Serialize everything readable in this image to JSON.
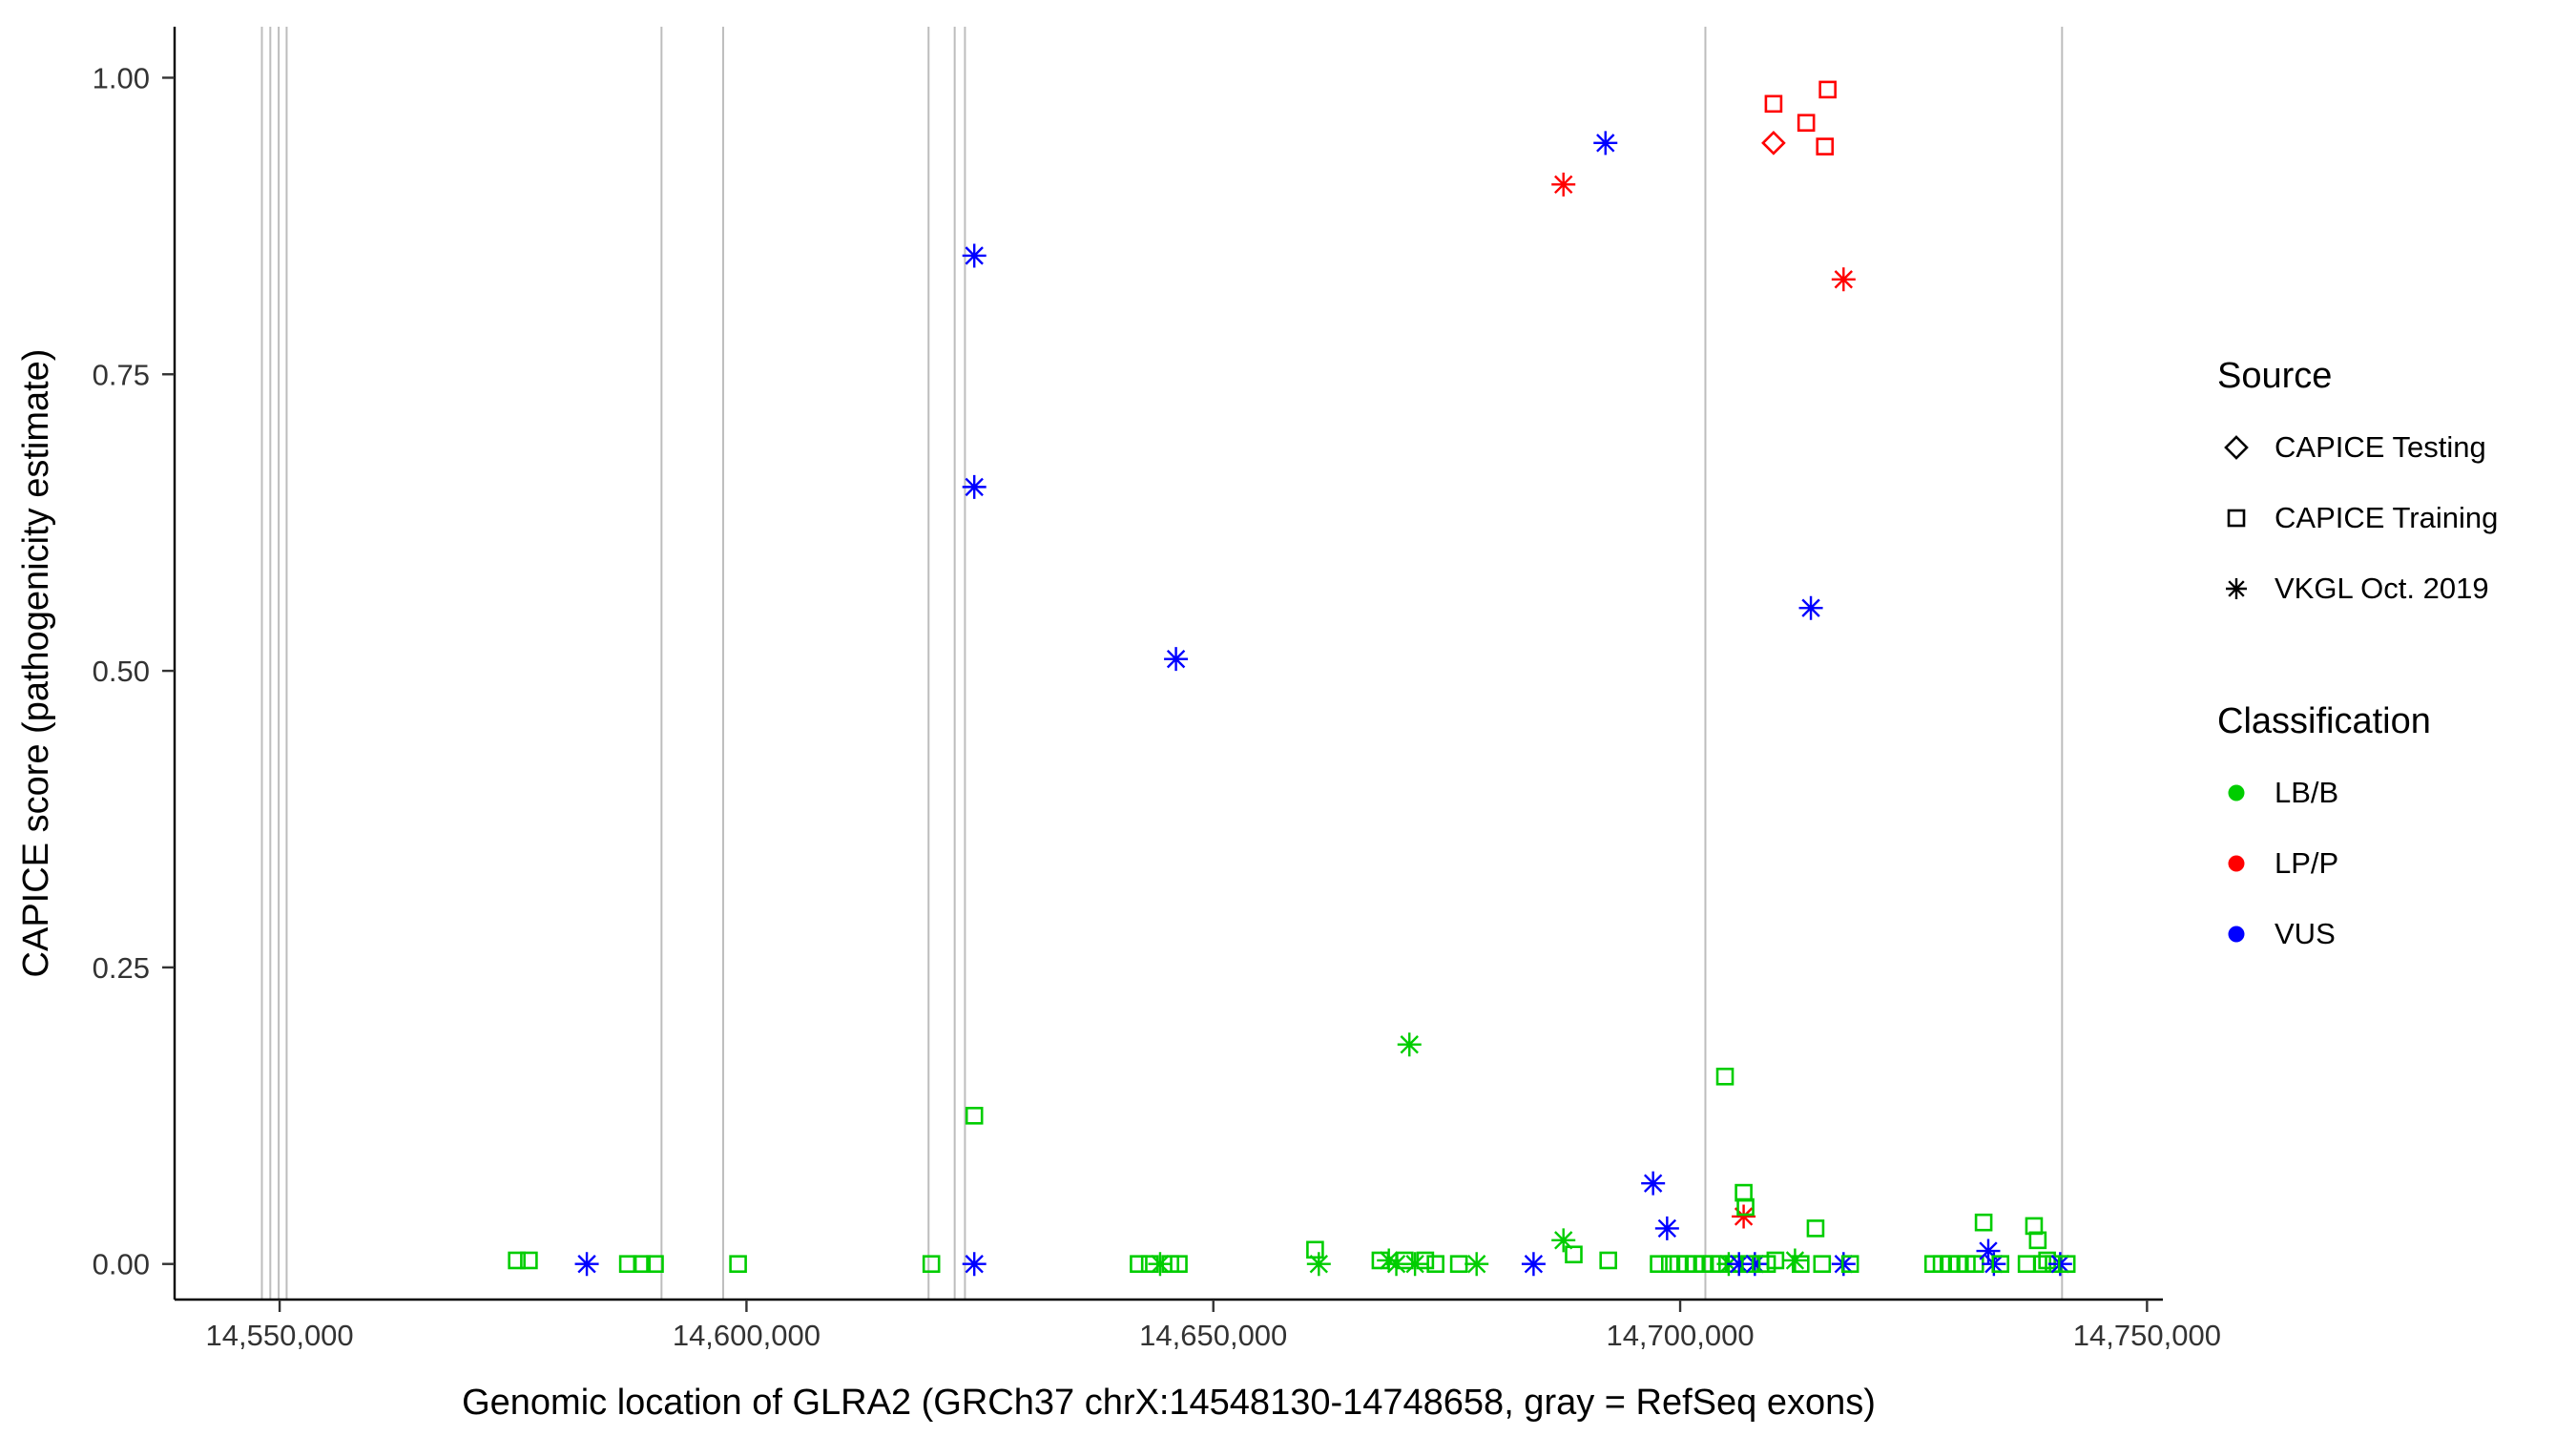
{
  "chart_data": {
    "type": "scatter",
    "title": "",
    "xlabel": "Genomic location of GLRA2 (GRCh37 chrX:14548130-14748658, gray = RefSeq exons)",
    "ylabel": "CAPICE score (pathogenicity estimate)",
    "xlim": [
      14538750,
      14751700
    ],
    "ylim": [
      -0.03,
      1.043
    ],
    "grid": "off",
    "legend_position": "right",
    "x_ticks": [
      {
        "value": 14550000,
        "label": "14,550,000"
      },
      {
        "value": 14600000,
        "label": "14,600,000"
      },
      {
        "value": 14650000,
        "label": "14,650,000"
      },
      {
        "value": 14700000,
        "label": "14,700,000"
      },
      {
        "value": 14750000,
        "label": "14,750,000"
      }
    ],
    "y_ticks": [
      {
        "value": 0.0,
        "label": "0.00"
      },
      {
        "value": 0.25,
        "label": "0.25"
      },
      {
        "value": 0.5,
        "label": "0.50"
      },
      {
        "value": 0.75,
        "label": "0.75"
      },
      {
        "value": 1.0,
        "label": "1.00"
      }
    ],
    "exon_color": "#bdbdbd",
    "exons": [
      14548100,
      14549000,
      14549900,
      14550750,
      14590900,
      14597500,
      14619500,
      14622300,
      14623400,
      14702700,
      14740900
    ],
    "colors": {
      "lbb": "#00cd00",
      "lpp": "#ff0000",
      "vus": "#0000ff"
    },
    "points": [
      {
        "x": 14575400,
        "y": 0.003,
        "s": "square",
        "c": "lbb"
      },
      {
        "x": 14576700,
        "y": 0.003,
        "s": "square",
        "c": "lbb"
      },
      {
        "x": 14582900,
        "y": 0.0,
        "s": "asterisk",
        "c": "vus"
      },
      {
        "x": 14587300,
        "y": 0.0,
        "s": "square",
        "c": "lbb"
      },
      {
        "x": 14588800,
        "y": 0.0,
        "s": "square",
        "c": "lbb"
      },
      {
        "x": 14590200,
        "y": 0.0,
        "s": "square",
        "c": "lbb"
      },
      {
        "x": 14599100,
        "y": 0.0,
        "s": "square",
        "c": "lbb"
      },
      {
        "x": 14619800,
        "y": 0.0,
        "s": "square",
        "c": "lbb"
      },
      {
        "x": 14624400,
        "y": 0.85,
        "s": "asterisk",
        "c": "vus"
      },
      {
        "x": 14624400,
        "y": 0.655,
        "s": "asterisk",
        "c": "vus"
      },
      {
        "x": 14624400,
        "y": 0.125,
        "s": "square",
        "c": "lbb"
      },
      {
        "x": 14624400,
        "y": 0.0,
        "s": "asterisk",
        "c": "vus"
      },
      {
        "x": 14642000,
        "y": 0.0,
        "s": "square",
        "c": "lbb"
      },
      {
        "x": 14643200,
        "y": 0.0,
        "s": "square",
        "c": "lbb"
      },
      {
        "x": 14644300,
        "y": 0.0,
        "s": "asterisk",
        "c": "lbb"
      },
      {
        "x": 14645400,
        "y": 0.0,
        "s": "square",
        "c": "lbb"
      },
      {
        "x": 14646300,
        "y": 0.0,
        "s": "square",
        "c": "lbb"
      },
      {
        "x": 14646000,
        "y": 0.51,
        "s": "asterisk",
        "c": "vus"
      },
      {
        "x": 14660900,
        "y": 0.012,
        "s": "square",
        "c": "lbb"
      },
      {
        "x": 14661300,
        "y": 0.0,
        "s": "asterisk",
        "c": "lbb"
      },
      {
        "x": 14667900,
        "y": 0.003,
        "s": "square",
        "c": "lbb"
      },
      {
        "x": 14668800,
        "y": 0.003,
        "s": "asterisk",
        "c": "lbb"
      },
      {
        "x": 14669600,
        "y": 0.0,
        "s": "asterisk",
        "c": "lbb"
      },
      {
        "x": 14670500,
        "y": 0.003,
        "s": "square",
        "c": "lbb"
      },
      {
        "x": 14671000,
        "y": 0.185,
        "s": "asterisk",
        "c": "lbb"
      },
      {
        "x": 14671600,
        "y": 0.0,
        "s": "asterisk",
        "c": "lbb"
      },
      {
        "x": 14672700,
        "y": 0.003,
        "s": "square",
        "c": "lbb"
      },
      {
        "x": 14673800,
        "y": 0.0,
        "s": "square",
        "c": "lbb"
      },
      {
        "x": 14676300,
        "y": 0.0,
        "s": "square",
        "c": "lbb"
      },
      {
        "x": 14678200,
        "y": 0.0,
        "s": "asterisk",
        "c": "lbb"
      },
      {
        "x": 14684300,
        "y": 0.0,
        "s": "asterisk",
        "c": "vus"
      },
      {
        "x": 14687500,
        "y": 0.91,
        "s": "asterisk",
        "c": "lpp"
      },
      {
        "x": 14687500,
        "y": 0.02,
        "s": "asterisk",
        "c": "lbb"
      },
      {
        "x": 14688600,
        "y": 0.008,
        "s": "square",
        "c": "lbb"
      },
      {
        "x": 14692000,
        "y": 0.945,
        "s": "asterisk",
        "c": "vus"
      },
      {
        "x": 14692300,
        "y": 0.003,
        "s": "square",
        "c": "lbb"
      },
      {
        "x": 14697100,
        "y": 0.068,
        "s": "asterisk",
        "c": "vus"
      },
      {
        "x": 14697700,
        "y": 0.0,
        "s": "square",
        "c": "lbb"
      },
      {
        "x": 14698600,
        "y": 0.03,
        "s": "asterisk",
        "c": "vus"
      },
      {
        "x": 14698900,
        "y": 0.0,
        "s": "square",
        "c": "lbb"
      },
      {
        "x": 14699800,
        "y": 0.0,
        "s": "square",
        "c": "lbb"
      },
      {
        "x": 14700700,
        "y": 0.0,
        "s": "square",
        "c": "lbb"
      },
      {
        "x": 14701600,
        "y": 0.0,
        "s": "square",
        "c": "lbb"
      },
      {
        "x": 14702500,
        "y": 0.0,
        "s": "square",
        "c": "lbb"
      },
      {
        "x": 14703400,
        "y": 0.0,
        "s": "square",
        "c": "lbb"
      },
      {
        "x": 14704300,
        "y": 0.0,
        "s": "square",
        "c": "lbb"
      },
      {
        "x": 14704800,
        "y": 0.158,
        "s": "square",
        "c": "lbb"
      },
      {
        "x": 14705200,
        "y": 0.0,
        "s": "asterisk",
        "c": "lbb"
      },
      {
        "x": 14705700,
        "y": 0.0,
        "s": "square",
        "c": "lbb"
      },
      {
        "x": 14706300,
        "y": 0.0,
        "s": "asterisk",
        "c": "vus"
      },
      {
        "x": 14706800,
        "y": 0.04,
        "s": "asterisk",
        "c": "lpp"
      },
      {
        "x": 14706800,
        "y": 0.06,
        "s": "square",
        "c": "lbb"
      },
      {
        "x": 14707000,
        "y": 0.048,
        "s": "square",
        "c": "lbb"
      },
      {
        "x": 14707500,
        "y": 0.0,
        "s": "square",
        "c": "lbb"
      },
      {
        "x": 14708000,
        "y": 0.0,
        "s": "asterisk",
        "c": "vus"
      },
      {
        "x": 14708600,
        "y": 0.0,
        "s": "square",
        "c": "lbb"
      },
      {
        "x": 14709300,
        "y": 0.0,
        "s": "square",
        "c": "lbb"
      },
      {
        "x": 14710000,
        "y": 0.945,
        "s": "diamond",
        "c": "lpp"
      },
      {
        "x": 14710000,
        "y": 0.978,
        "s": "square",
        "c": "lpp"
      },
      {
        "x": 14713500,
        "y": 0.962,
        "s": "square",
        "c": "lpp"
      },
      {
        "x": 14715800,
        "y": 0.99,
        "s": "square",
        "c": "lpp"
      },
      {
        "x": 14715500,
        "y": 0.942,
        "s": "square",
        "c": "lpp"
      },
      {
        "x": 14710200,
        "y": 0.003,
        "s": "square",
        "c": "lbb"
      },
      {
        "x": 14712300,
        "y": 0.003,
        "s": "asterisk",
        "c": "lbb"
      },
      {
        "x": 14712900,
        "y": 0.0,
        "s": "square",
        "c": "lbb"
      },
      {
        "x": 14714000,
        "y": 0.553,
        "s": "asterisk",
        "c": "vus"
      },
      {
        "x": 14714500,
        "y": 0.03,
        "s": "square",
        "c": "lbb"
      },
      {
        "x": 14715200,
        "y": 0.0,
        "s": "square",
        "c": "lbb"
      },
      {
        "x": 14717500,
        "y": 0.83,
        "s": "asterisk",
        "c": "lpp"
      },
      {
        "x": 14717500,
        "y": 0.0,
        "s": "asterisk",
        "c": "vus"
      },
      {
        "x": 14718200,
        "y": 0.0,
        "s": "square",
        "c": "lbb"
      },
      {
        "x": 14727100,
        "y": 0.0,
        "s": "square",
        "c": "lbb"
      },
      {
        "x": 14728000,
        "y": 0.0,
        "s": "square",
        "c": "lbb"
      },
      {
        "x": 14728900,
        "y": 0.0,
        "s": "square",
        "c": "lbb"
      },
      {
        "x": 14729800,
        "y": 0.0,
        "s": "square",
        "c": "lbb"
      },
      {
        "x": 14730700,
        "y": 0.0,
        "s": "square",
        "c": "lbb"
      },
      {
        "x": 14731600,
        "y": 0.0,
        "s": "square",
        "c": "lbb"
      },
      {
        "x": 14732500,
        "y": 0.035,
        "s": "square",
        "c": "lbb"
      },
      {
        "x": 14733000,
        "y": 0.011,
        "s": "asterisk",
        "c": "vus"
      },
      {
        "x": 14733600,
        "y": 0.0,
        "s": "asterisk",
        "c": "vus"
      },
      {
        "x": 14734300,
        "y": 0.0,
        "s": "square",
        "c": "lbb"
      },
      {
        "x": 14737100,
        "y": 0.0,
        "s": "square",
        "c": "lbb"
      },
      {
        "x": 14737900,
        "y": 0.032,
        "s": "square",
        "c": "lbb"
      },
      {
        "x": 14738300,
        "y": 0.02,
        "s": "square",
        "c": "lbb"
      },
      {
        "x": 14738800,
        "y": 0.0,
        "s": "square",
        "c": "lbb"
      },
      {
        "x": 14739300,
        "y": 0.003,
        "s": "square",
        "c": "lbb"
      },
      {
        "x": 14740000,
        "y": 0.0,
        "s": "square",
        "c": "lbb"
      },
      {
        "x": 14740700,
        "y": 0.0,
        "s": "asterisk",
        "c": "vus"
      },
      {
        "x": 14741400,
        "y": 0.0,
        "s": "square",
        "c": "lbb"
      }
    ]
  },
  "legend": {
    "source": {
      "title": "Source",
      "items": [
        {
          "shape": "diamond",
          "label": "CAPICE Testing"
        },
        {
          "shape": "square",
          "label": "CAPICE Training"
        },
        {
          "shape": "asterisk",
          "label": "VKGL Oct. 2019"
        }
      ]
    },
    "classification": {
      "title": "Classification",
      "items": [
        {
          "color_key": "lbb",
          "label": "LB/B"
        },
        {
          "color_key": "lpp",
          "label": "LP/P"
        },
        {
          "color_key": "vus",
          "label": "VUS"
        }
      ]
    }
  }
}
